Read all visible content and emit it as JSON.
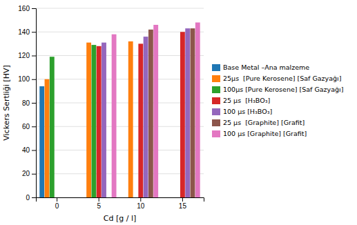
{
  "chart_data": {
    "type": "bar",
    "x_label": "Cd [g / l]",
    "y_label": "Vickers Sertliği [HV]",
    "categories": [
      "0",
      "5",
      "10",
      "15"
    ],
    "series": [
      {
        "name": "Base Metal –Ana malzeme",
        "values": [
          94,
          null,
          null,
          null
        ]
      },
      {
        "name": "25μs  [Pure Kerosene] [Saf Gazyağı]",
        "values": [
          100,
          131,
          132,
          null
        ]
      },
      {
        "name": "100μs [Pure Kerosene] [Saf Gazyağı]",
        "values": [
          119,
          129,
          null,
          null
        ]
      },
      {
        "name": "25 μs  [H₃BO₃]",
        "values": [
          null,
          128,
          130,
          140
        ]
      },
      {
        "name": "100 μs [H₃BO₃]",
        "values": [
          null,
          131,
          136,
          143
        ]
      },
      {
        "name": "25 μs  [Graphite] [Grafit]",
        "values": [
          null,
          null,
          142,
          143
        ]
      },
      {
        "name": "100 μs [Graphite] [Grafit]",
        "values": [
          null,
          138,
          146,
          148
        ]
      }
    ],
    "ylim": [
      0,
      160
    ],
    "yticks": [
      0,
      20,
      40,
      60,
      80,
      100,
      120,
      140,
      160
    ],
    "grid": true,
    "legend": "right"
  }
}
